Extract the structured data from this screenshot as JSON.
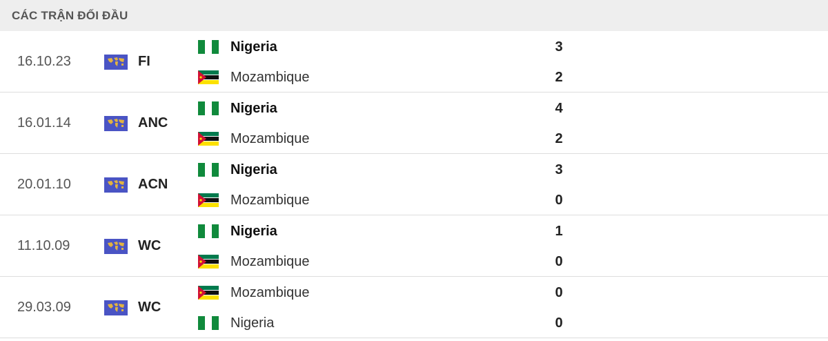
{
  "header": {
    "title": "CÁC TRẬN ĐỐI ĐẦU"
  },
  "colors": {
    "nigeria_green": "#108a3c",
    "mozambique_green": "#007a4d",
    "mozambique_red": "#d21034",
    "mozambique_yellow": "#fce100",
    "competition_icon": "#4a54c4"
  },
  "matches": [
    {
      "date": "16.10.23",
      "competition": "FI",
      "competition_icon": "world-map-icon",
      "home": {
        "name": "Nigeria",
        "flag": "nigeria",
        "score": "3",
        "winner": true
      },
      "away": {
        "name": "Mozambique",
        "flag": "mozambique",
        "score": "2",
        "winner": false
      }
    },
    {
      "date": "16.01.14",
      "competition": "ANC",
      "competition_icon": "world-map-icon",
      "home": {
        "name": "Nigeria",
        "flag": "nigeria",
        "score": "4",
        "winner": true
      },
      "away": {
        "name": "Mozambique",
        "flag": "mozambique",
        "score": "2",
        "winner": false
      }
    },
    {
      "date": "20.01.10",
      "competition": "ACN",
      "competition_icon": "world-map-icon",
      "home": {
        "name": "Nigeria",
        "flag": "nigeria",
        "score": "3",
        "winner": true
      },
      "away": {
        "name": "Mozambique",
        "flag": "mozambique",
        "score": "0",
        "winner": false
      }
    },
    {
      "date": "11.10.09",
      "competition": "WC",
      "competition_icon": "world-map-icon",
      "home": {
        "name": "Nigeria",
        "flag": "nigeria",
        "score": "1",
        "winner": true
      },
      "away": {
        "name": "Mozambique",
        "flag": "mozambique",
        "score": "0",
        "winner": false
      }
    },
    {
      "date": "29.03.09",
      "competition": "WC",
      "competition_icon": "world-map-icon",
      "home": {
        "name": "Mozambique",
        "flag": "mozambique",
        "score": "0",
        "winner": false
      },
      "away": {
        "name": "Nigeria",
        "flag": "nigeria",
        "score": "0",
        "winner": false
      }
    }
  ]
}
